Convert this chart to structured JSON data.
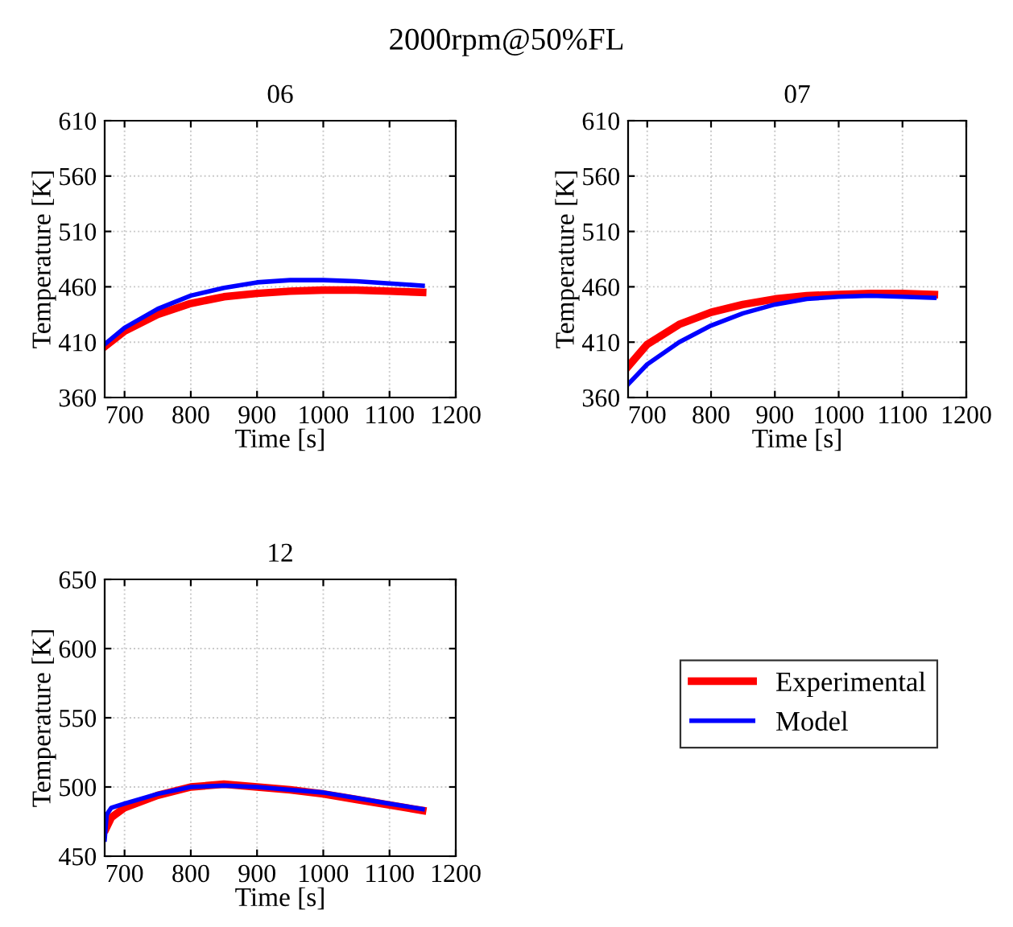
{
  "chart_data": [
    {
      "type": "line",
      "title": "06",
      "xlabel": "Time [s]",
      "ylabel": "Temperature [K]",
      "annotations": [
        "2000rpm@50%FL"
      ],
      "xlim": [
        670,
        1200
      ],
      "xticks": [
        700,
        800,
        900,
        1000,
        1100,
        1200
      ],
      "ylim": [
        360,
        610
      ],
      "yticks": [
        360,
        410,
        460,
        510,
        560,
        610
      ],
      "grid": true,
      "line_style": "solid",
      "series": [
        {
          "color": "#ff0000",
          "x": [
            670,
            700,
            750,
            800,
            850,
            900,
            950,
            1000,
            1050,
            1100,
            1150
          ],
          "values": [
            406,
            420,
            435,
            445,
            451,
            454,
            456,
            457,
            457,
            456,
            455
          ]
        },
        {
          "color": "#0000ff",
          "x": [
            670,
            700,
            750,
            800,
            850,
            900,
            950,
            1000,
            1050,
            1100,
            1150
          ],
          "values": [
            408,
            423,
            440,
            452,
            459,
            464,
            466,
            466,
            465,
            463,
            461
          ]
        }
      ]
    },
    {
      "type": "line",
      "title": "07",
      "xlabel": "Time [s]",
      "ylabel": "Temperature [K]",
      "xlim": [
        670,
        1200
      ],
      "xticks": [
        700,
        800,
        900,
        1000,
        1100,
        1200
      ],
      "ylim": [
        360,
        610
      ],
      "yticks": [
        360,
        410,
        460,
        510,
        560,
        610
      ],
      "grid": true,
      "line_style": "solid",
      "series": [
        {
          "color": "#ff0000",
          "x": [
            670,
            700,
            750,
            800,
            850,
            900,
            950,
            1000,
            1050,
            1100,
            1150
          ],
          "values": [
            388,
            408,
            426,
            437,
            444,
            449,
            452,
            453,
            454,
            454,
            453
          ]
        },
        {
          "color": "#0000ff",
          "x": [
            670,
            700,
            750,
            800,
            850,
            900,
            950,
            1000,
            1050,
            1100,
            1150
          ],
          "values": [
            372,
            390,
            410,
            425,
            436,
            444,
            449,
            451,
            452,
            451,
            450
          ]
        }
      ]
    },
    {
      "type": "line",
      "title": "12",
      "xlabel": "Time [s]",
      "ylabel": "Temperature [K]",
      "xlim": [
        670,
        1200
      ],
      "xticks": [
        700,
        800,
        900,
        1000,
        1100,
        1200
      ],
      "ylim": [
        450,
        650
      ],
      "yticks": [
        450,
        500,
        550,
        600,
        650
      ],
      "grid": true,
      "line_style": "solid",
      "legend": "right",
      "series": [
        {
          "name": "Experimental",
          "color": "#ff0000",
          "x": [
            672,
            680,
            700,
            750,
            800,
            850,
            900,
            950,
            1000,
            1050,
            1100,
            1150
          ],
          "values": [
            470,
            478,
            485,
            494,
            500,
            502,
            500,
            498,
            495,
            491,
            487,
            483
          ]
        },
        {
          "name": "Model",
          "color": "#0000ff",
          "x": [
            670,
            673,
            680,
            700,
            750,
            800,
            850,
            900,
            950,
            1000,
            1050,
            1100,
            1150
          ],
          "values": [
            462,
            480,
            485,
            488,
            495,
            500,
            501,
            500,
            498,
            496,
            492,
            488,
            484
          ]
        }
      ]
    }
  ]
}
